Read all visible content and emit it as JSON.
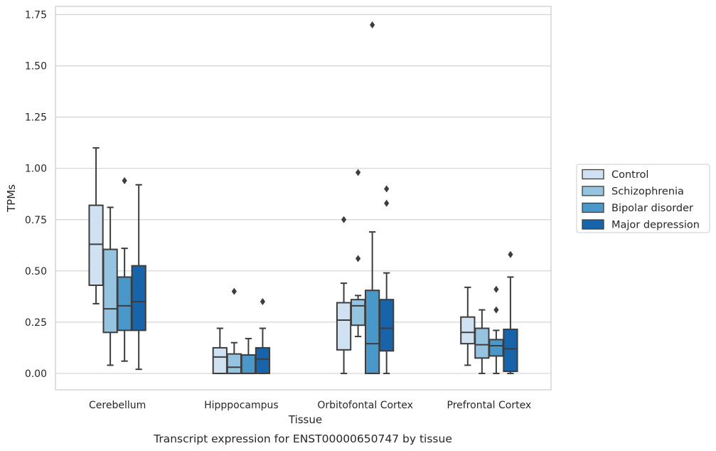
{
  "caption": "Transcript expression for ENST00000650747 by tissue",
  "chart_data": {
    "type": "box",
    "title": "",
    "xlabel": "Tissue",
    "ylabel": "TPMs",
    "ylim": [
      -0.08,
      1.79
    ],
    "yticks": [
      "0.00",
      "0.25",
      "0.50",
      "0.75",
      "1.00",
      "1.25",
      "1.50",
      "1.75"
    ],
    "ytick_values": [
      0,
      0.25,
      0.5,
      0.75,
      1.0,
      1.25,
      1.5,
      1.75
    ],
    "grid": "horizontal",
    "legend_position": "right",
    "categories": [
      "Cerebellum",
      "Hipppocampus",
      "Orbitofontal Cortex",
      "Prefrontal Cortex"
    ],
    "series": [
      {
        "name": "Control",
        "color": "#d0e1f2",
        "boxes": [
          {
            "min": 0.34,
            "q1": 0.43,
            "median": 0.63,
            "q3": 0.82,
            "max": 1.1,
            "outliers": []
          },
          {
            "min": 0.0,
            "q1": 0.0,
            "median": 0.08,
            "q3": 0.125,
            "max": 0.22,
            "outliers": []
          },
          {
            "min": 0.0,
            "q1": 0.115,
            "median": 0.26,
            "q3": 0.345,
            "max": 0.44,
            "outliers": [
              0.75
            ]
          },
          {
            "min": 0.04,
            "q1": 0.145,
            "median": 0.2,
            "q3": 0.275,
            "max": 0.42,
            "outliers": []
          }
        ]
      },
      {
        "name": "Schizophrenia",
        "color": "#94c4df",
        "boxes": [
          {
            "min": 0.04,
            "q1": 0.2,
            "median": 0.315,
            "q3": 0.605,
            "max": 0.81,
            "outliers": []
          },
          {
            "min": 0.0,
            "q1": 0.0,
            "median": 0.03,
            "q3": 0.095,
            "max": 0.15,
            "outliers": [
              0.4
            ]
          },
          {
            "min": 0.18,
            "q1": 0.235,
            "median": 0.33,
            "q3": 0.36,
            "max": 0.38,
            "outliers": [
              0.56,
              0.98
            ]
          },
          {
            "min": 0.0,
            "q1": 0.075,
            "median": 0.14,
            "q3": 0.22,
            "max": 0.31,
            "outliers": []
          }
        ]
      },
      {
        "name": "Bipolar disorder",
        "color": "#4a98c9",
        "boxes": [
          {
            "min": 0.06,
            "q1": 0.21,
            "median": 0.33,
            "q3": 0.47,
            "max": 0.61,
            "outliers": [
              0.94
            ]
          },
          {
            "min": 0.0,
            "q1": 0.0,
            "median": 0.0,
            "q3": 0.09,
            "max": 0.17,
            "outliers": []
          },
          {
            "min": 0.0,
            "q1": 0.0,
            "median": 0.145,
            "q3": 0.405,
            "max": 0.69,
            "outliers": [
              1.7
            ]
          },
          {
            "min": 0.0,
            "q1": 0.085,
            "median": 0.135,
            "q3": 0.165,
            "max": 0.21,
            "outliers": [
              0.31,
              0.41
            ]
          }
        ]
      },
      {
        "name": "Major depression",
        "color": "#1764ab",
        "boxes": [
          {
            "min": 0.02,
            "q1": 0.21,
            "median": 0.35,
            "q3": 0.525,
            "max": 0.92,
            "outliers": []
          },
          {
            "min": 0.0,
            "q1": 0.0,
            "median": 0.07,
            "q3": 0.125,
            "max": 0.22,
            "outliers": [
              0.35
            ]
          },
          {
            "min": 0.0,
            "q1": 0.11,
            "median": 0.22,
            "q3": 0.36,
            "max": 0.49,
            "outliers": [
              0.83,
              0.9
            ]
          },
          {
            "min": 0.0,
            "q1": 0.01,
            "median": 0.12,
            "q3": 0.215,
            "max": 0.47,
            "outliers": [
              0.58
            ]
          }
        ]
      }
    ]
  }
}
